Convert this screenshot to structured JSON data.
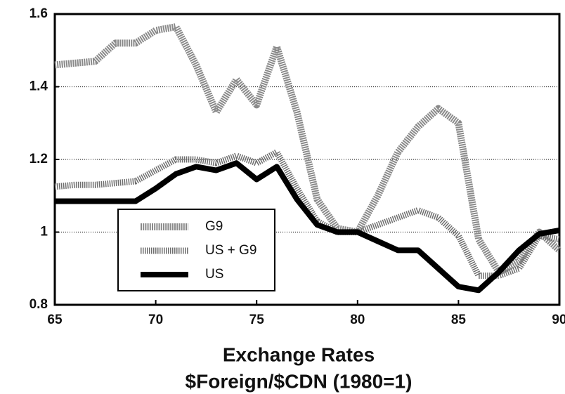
{
  "chart_data": {
    "type": "line",
    "title": "Exchange Rates",
    "subtitle": "$Foreign/$CDN (1980=1)",
    "x": [
      65,
      66,
      67,
      68,
      69,
      70,
      71,
      72,
      73,
      74,
      75,
      76,
      77,
      78,
      79,
      80,
      81,
      82,
      83,
      84,
      85,
      86,
      87,
      88,
      89,
      90
    ],
    "series": [
      {
        "name": "G9",
        "color": "#8a8a8a",
        "values": [
          1.46,
          1.465,
          1.47,
          1.52,
          1.52,
          1.555,
          1.565,
          1.46,
          1.33,
          1.42,
          1.35,
          1.51,
          1.33,
          1.09,
          1.01,
          1.0,
          1.1,
          1.22,
          1.29,
          1.34,
          1.3,
          0.98,
          0.89,
          0.92,
          1.0,
          0.95
        ]
      },
      {
        "name": "US + G9",
        "color": "#6e6e6e",
        "values": [
          1.125,
          1.13,
          1.13,
          1.135,
          1.14,
          1.17,
          1.2,
          1.2,
          1.19,
          1.21,
          1.19,
          1.22,
          1.12,
          1.03,
          1.0,
          1.0,
          1.02,
          1.04,
          1.06,
          1.04,
          0.99,
          0.88,
          0.88,
          0.9,
          0.99,
          0.98
        ]
      },
      {
        "name": "US",
        "color": "#000000",
        "values": [
          1.085,
          1.085,
          1.085,
          1.085,
          1.085,
          1.12,
          1.16,
          1.18,
          1.17,
          1.19,
          1.145,
          1.18,
          1.09,
          1.02,
          1.0,
          1.0,
          0.975,
          0.95,
          0.95,
          0.9,
          0.85,
          0.84,
          0.89,
          0.95,
          0.995,
          1.005
        ]
      }
    ],
    "xlim": [
      65,
      90
    ],
    "xticks": [
      65,
      70,
      75,
      80,
      85,
      90
    ],
    "ylim": [
      0.8,
      1.6
    ],
    "yticks": [
      0.8,
      1,
      1.2,
      1.4,
      1.6
    ],
    "grid": true
  }
}
